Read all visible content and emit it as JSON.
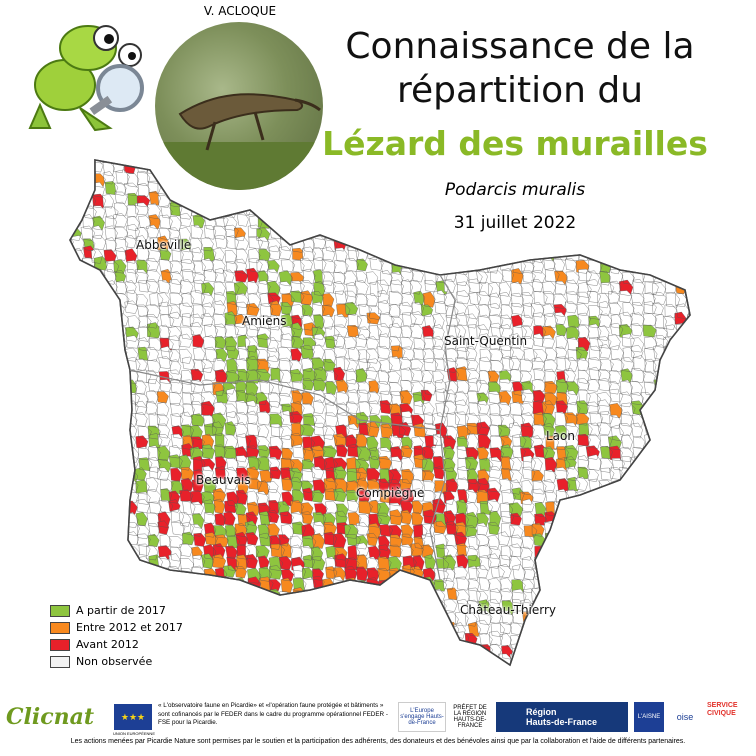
{
  "header": {
    "photo_credit": "V. ACLOQUE",
    "title_line1": "Connaissance de la",
    "title_line2": "répartition du",
    "species_common": "Lézard des murailles",
    "species_scientific": "Podarcis muralis",
    "date": "31 juillet 2022"
  },
  "map": {
    "cities": [
      {
        "name": "Abbeville"
      },
      {
        "name": "Amiens"
      },
      {
        "name": "Saint-Quentin"
      },
      {
        "name": "Laon"
      },
      {
        "name": "Beauvais"
      },
      {
        "name": "Compiègne"
      },
      {
        "name": "Château-Thierry"
      }
    ],
    "colors": {
      "recent": "#8ec53f",
      "mid": "#f7891f",
      "old": "#e8212a",
      "none": "#ffffff",
      "border": "#555555"
    }
  },
  "legend": {
    "items": [
      {
        "label": "A partir de 2017",
        "color": "#8ec53f"
      },
      {
        "label": "Entre 2012 et 2017",
        "color": "#f7891f"
      },
      {
        "label": "Avant 2012",
        "color": "#e8212a"
      },
      {
        "label": "Non observée",
        "color": "#f2f2f2"
      }
    ]
  },
  "footer": {
    "clicnat": "Clicnat",
    "eu_caption": "UNION EUROPÉENNE",
    "feder_text": "« L'observatoire faune en Picardie» et «l'opération faune protégée et bâtiments » sont cofinancés par le FEDER dans le cadre du programme opérationnel FEDER - FSE pour la Picardie.",
    "europe_logo": "L'Europe s'engage Hauts-de-France",
    "prefet_logo": "PRÉFET DE LA RÉGION HAUTS-DE-FRANCE",
    "region_line1": "Région",
    "region_line2": "Hauts-de-France",
    "aisne": "L'AISNE",
    "oise": "oise",
    "service_civique": "SERVICE CIVIQUE",
    "funding_note": "Les actions menées par Picardie Nature sont permises par le soutien et la participation des adhérents, des donateurs et des bénévoles ainsi que par la collaboration et l'aide de différents partenaires."
  }
}
